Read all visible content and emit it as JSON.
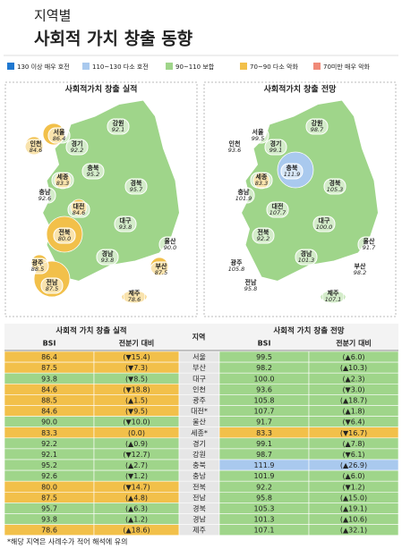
{
  "header": {
    "kicker": "지역별",
    "title": "사회적 가치 창출 동향"
  },
  "legend": [
    {
      "label": "130 이상 매우 호전",
      "color": "#1f78d1"
    },
    {
      "label": "110~130 다소 호전",
      "color": "#a9c9ee"
    },
    {
      "label": "90~110 보합",
      "color": "#9fd58a"
    },
    {
      "label": "70~90 다소 악화",
      "color": "#f2c04a"
    },
    {
      "label": "70미만 매우 악화",
      "color": "#f08a78"
    }
  ],
  "maps": [
    {
      "title": "사회적가치 창출 실적",
      "regions": [
        {
          "name": "서울",
          "value": "86.4",
          "color": "#f2c04a"
        },
        {
          "name": "인천",
          "value": "84.6",
          "color": "#f2c04a"
        },
        {
          "name": "경기",
          "value": "92.2",
          "color": "#9fd58a"
        },
        {
          "name": "강원",
          "value": "92.1",
          "color": "#9fd58a"
        },
        {
          "name": "충북",
          "value": "95.2",
          "color": "#9fd58a"
        },
        {
          "name": "세종",
          "value": "83.3",
          "color": "#f2c04a"
        },
        {
          "name": "충남",
          "value": "92.6",
          "color": "#9fd58a"
        },
        {
          "name": "대전",
          "value": "84.6",
          "color": "#f2c04a"
        },
        {
          "name": "경북",
          "value": "95.7",
          "color": "#9fd58a"
        },
        {
          "name": "대구",
          "value": "93.8",
          "color": "#9fd58a"
        },
        {
          "name": "전북",
          "value": "80.0",
          "color": "#f2c04a"
        },
        {
          "name": "울산",
          "value": "90.0",
          "color": "#9fd58a"
        },
        {
          "name": "경남",
          "value": "93.8",
          "color": "#9fd58a"
        },
        {
          "name": "광주",
          "value": "88.5",
          "color": "#f2c04a"
        },
        {
          "name": "부산",
          "value": "87.5",
          "color": "#f2c04a"
        },
        {
          "name": "전남",
          "value": "87.5",
          "color": "#f2c04a"
        },
        {
          "name": "제주",
          "value": "78.6",
          "color": "#f2c04a"
        }
      ]
    },
    {
      "title": "사회적가치 창출 전망",
      "regions": [
        {
          "name": "서울",
          "value": "99.5",
          "color": "#9fd58a"
        },
        {
          "name": "인천",
          "value": "93.6",
          "color": "#9fd58a"
        },
        {
          "name": "경기",
          "value": "99.1",
          "color": "#9fd58a"
        },
        {
          "name": "강원",
          "value": "98.7",
          "color": "#9fd58a"
        },
        {
          "name": "충북",
          "value": "111.9",
          "color": "#a9c9ee"
        },
        {
          "name": "세종",
          "value": "83.3",
          "color": "#f2c04a"
        },
        {
          "name": "충남",
          "value": "101.9",
          "color": "#9fd58a"
        },
        {
          "name": "대전",
          "value": "107.7",
          "color": "#9fd58a"
        },
        {
          "name": "경북",
          "value": "105.3",
          "color": "#9fd58a"
        },
        {
          "name": "대구",
          "value": "100.0",
          "color": "#9fd58a"
        },
        {
          "name": "전북",
          "value": "92.2",
          "color": "#9fd58a"
        },
        {
          "name": "울산",
          "value": "91.7",
          "color": "#9fd58a"
        },
        {
          "name": "경남",
          "value": "101.3",
          "color": "#9fd58a"
        },
        {
          "name": "광주",
          "value": "105.8",
          "color": "#9fd58a"
        },
        {
          "name": "부산",
          "value": "98.2",
          "color": "#9fd58a"
        },
        {
          "name": "전남",
          "value": "95.8",
          "color": "#9fd58a"
        },
        {
          "name": "제주",
          "value": "107.1",
          "color": "#9fd58a"
        }
      ]
    }
  ],
  "table": {
    "group_headers": [
      "사회적 가치 창출 실적",
      "지역",
      "사회적 가치 창출 전망"
    ],
    "sub_headers": [
      "BSI",
      "전분기 대비",
      "BSI",
      "전분기 대비"
    ],
    "rows": [
      {
        "region": "서울",
        "actual": {
          "bsi": "86.4",
          "change": "(▼15.4)",
          "color": "#f2c04a"
        },
        "outlook": {
          "bsi": "99.5",
          "change": "(▲6.0)",
          "color": "#9fd58a"
        }
      },
      {
        "region": "부산",
        "actual": {
          "bsi": "87.5",
          "change": "(▼7.3)",
          "color": "#f2c04a"
        },
        "outlook": {
          "bsi": "98.2",
          "change": "(▲10.3)",
          "color": "#9fd58a"
        }
      },
      {
        "region": "대구",
        "actual": {
          "bsi": "93.8",
          "change": "(▼8.5)",
          "color": "#9fd58a"
        },
        "outlook": {
          "bsi": "100.0",
          "change": "(▲2.3)",
          "color": "#9fd58a"
        }
      },
      {
        "region": "인천",
        "actual": {
          "bsi": "84.6",
          "change": "(▼18.8)",
          "color": "#f2c04a"
        },
        "outlook": {
          "bsi": "93.6",
          "change": "(▼3.0)",
          "color": "#9fd58a"
        }
      },
      {
        "region": "광주",
        "actual": {
          "bsi": "88.5",
          "change": "(▲1.5)",
          "color": "#f2c04a"
        },
        "outlook": {
          "bsi": "105.8",
          "change": "(▲18.7)",
          "color": "#9fd58a"
        }
      },
      {
        "region": "대전*",
        "actual": {
          "bsi": "84.6",
          "change": "(▼9.5)",
          "color": "#f2c04a"
        },
        "outlook": {
          "bsi": "107.7",
          "change": "(▲1.8)",
          "color": "#9fd58a"
        }
      },
      {
        "region": "울산",
        "actual": {
          "bsi": "90.0",
          "change": "(▼10.0)",
          "color": "#9fd58a"
        },
        "outlook": {
          "bsi": "91.7",
          "change": "(▼6.4)",
          "color": "#9fd58a"
        }
      },
      {
        "region": "세종*",
        "actual": {
          "bsi": "83.3",
          "change": "(0.0)",
          "color": "#f2c04a"
        },
        "outlook": {
          "bsi": "83.3",
          "change": "(▼16.7)",
          "color": "#f2c04a"
        }
      },
      {
        "region": "경기",
        "actual": {
          "bsi": "92.2",
          "change": "(▲0.9)",
          "color": "#9fd58a"
        },
        "outlook": {
          "bsi": "99.1",
          "change": "(▲7.8)",
          "color": "#9fd58a"
        }
      },
      {
        "region": "강원",
        "actual": {
          "bsi": "92.1",
          "change": "(▼12.7)",
          "color": "#9fd58a"
        },
        "outlook": {
          "bsi": "98.7",
          "change": "(▼6.1)",
          "color": "#9fd58a"
        }
      },
      {
        "region": "충북",
        "actual": {
          "bsi": "95.2",
          "change": "(▲2.7)",
          "color": "#9fd58a"
        },
        "outlook": {
          "bsi": "111.9",
          "change": "(▲26.9)",
          "color": "#a9c9ee"
        }
      },
      {
        "region": "충남",
        "actual": {
          "bsi": "92.6",
          "change": "(▼1.2)",
          "color": "#9fd58a"
        },
        "outlook": {
          "bsi": "101.9",
          "change": "(▲6.0)",
          "color": "#9fd58a"
        }
      },
      {
        "region": "전북",
        "actual": {
          "bsi": "80.0",
          "change": "(▼14.7)",
          "color": "#f2c04a"
        },
        "outlook": {
          "bsi": "92.2",
          "change": "(▼1.2)",
          "color": "#9fd58a"
        }
      },
      {
        "region": "전남",
        "actual": {
          "bsi": "87.5",
          "change": "(▲4.8)",
          "color": "#f2c04a"
        },
        "outlook": {
          "bsi": "95.8",
          "change": "(▲15.0)",
          "color": "#9fd58a"
        }
      },
      {
        "region": "경북",
        "actual": {
          "bsi": "95.7",
          "change": "(▲6.3)",
          "color": "#9fd58a"
        },
        "outlook": {
          "bsi": "105.3",
          "change": "(▲19.1)",
          "color": "#9fd58a"
        }
      },
      {
        "region": "경남",
        "actual": {
          "bsi": "93.8",
          "change": "(▲1.2)",
          "color": "#9fd58a"
        },
        "outlook": {
          "bsi": "101.3",
          "change": "(▲10.6)",
          "color": "#9fd58a"
        }
      },
      {
        "region": "제주",
        "actual": {
          "bsi": "78.6",
          "change": "(▲18.6)",
          "color": "#f2c04a"
        },
        "outlook": {
          "bsi": "107.1",
          "change": "(▲32.1)",
          "color": "#9fd58a"
        }
      }
    ]
  },
  "footnote": "*해당 지역은 사례수가 적어 해석에 유의"
}
